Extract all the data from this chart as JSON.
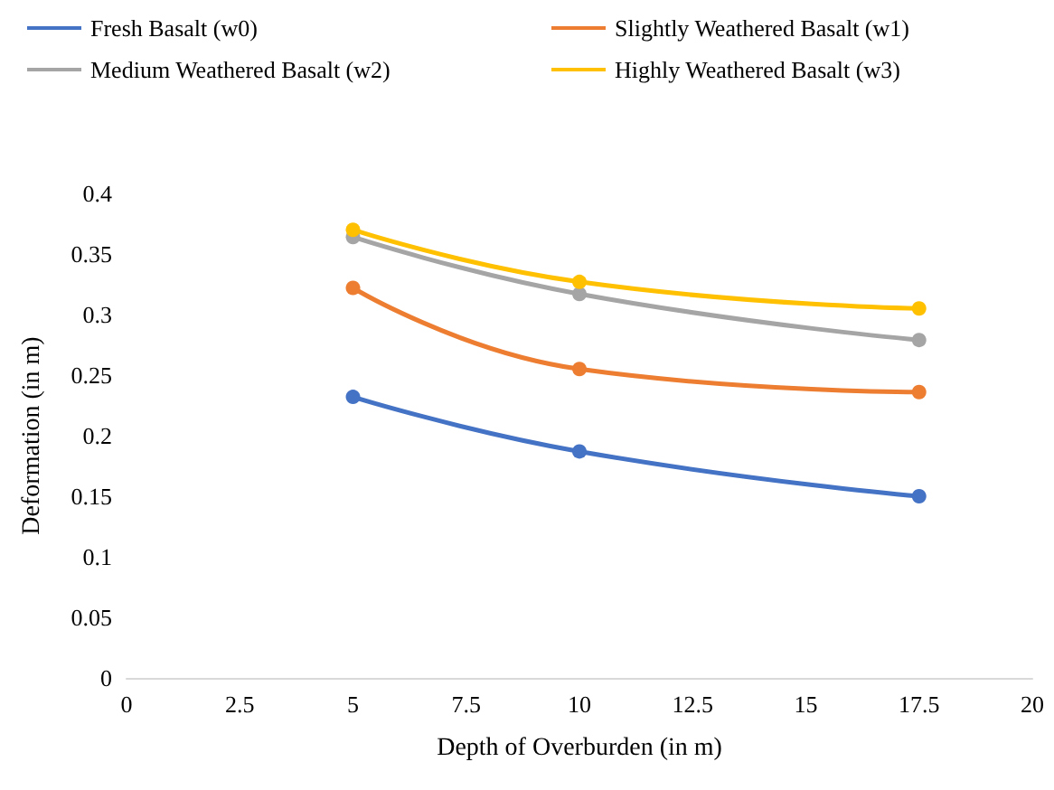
{
  "chart_data": {
    "type": "line",
    "xlabel": "Depth of Overburden (in m)",
    "ylabel": "Deformation (in m)",
    "x": [
      5,
      10,
      17.5
    ],
    "series": [
      {
        "name": "Fresh Basalt (w0)",
        "color": "#4472c4",
        "values": [
          0.232,
          0.187,
          0.15
        ]
      },
      {
        "name": "Slightly Weathered Basalt (w1)",
        "color": "#ed7d31",
        "values": [
          0.322,
          0.255,
          0.236
        ]
      },
      {
        "name": "Medium Weathered Basalt (w2)",
        "color": "#a5a5a5",
        "values": [
          0.364,
          0.317,
          0.279
        ]
      },
      {
        "name": "Highly Weathered Basalt (w3)",
        "color": "#ffc000",
        "values": [
          0.37,
          0.327,
          0.305
        ]
      }
    ],
    "xlim": [
      0,
      20
    ],
    "xticks": [
      0,
      2.5,
      5,
      7.5,
      10,
      12.5,
      15,
      17.5,
      20
    ],
    "ylim": [
      0,
      0.4
    ],
    "yticks": [
      0,
      0.05,
      0.1,
      0.15,
      0.2,
      0.25,
      0.3,
      0.35,
      0.4
    ],
    "grid": false,
    "legend": "top",
    "marker": "circle",
    "line_style": "solid"
  }
}
